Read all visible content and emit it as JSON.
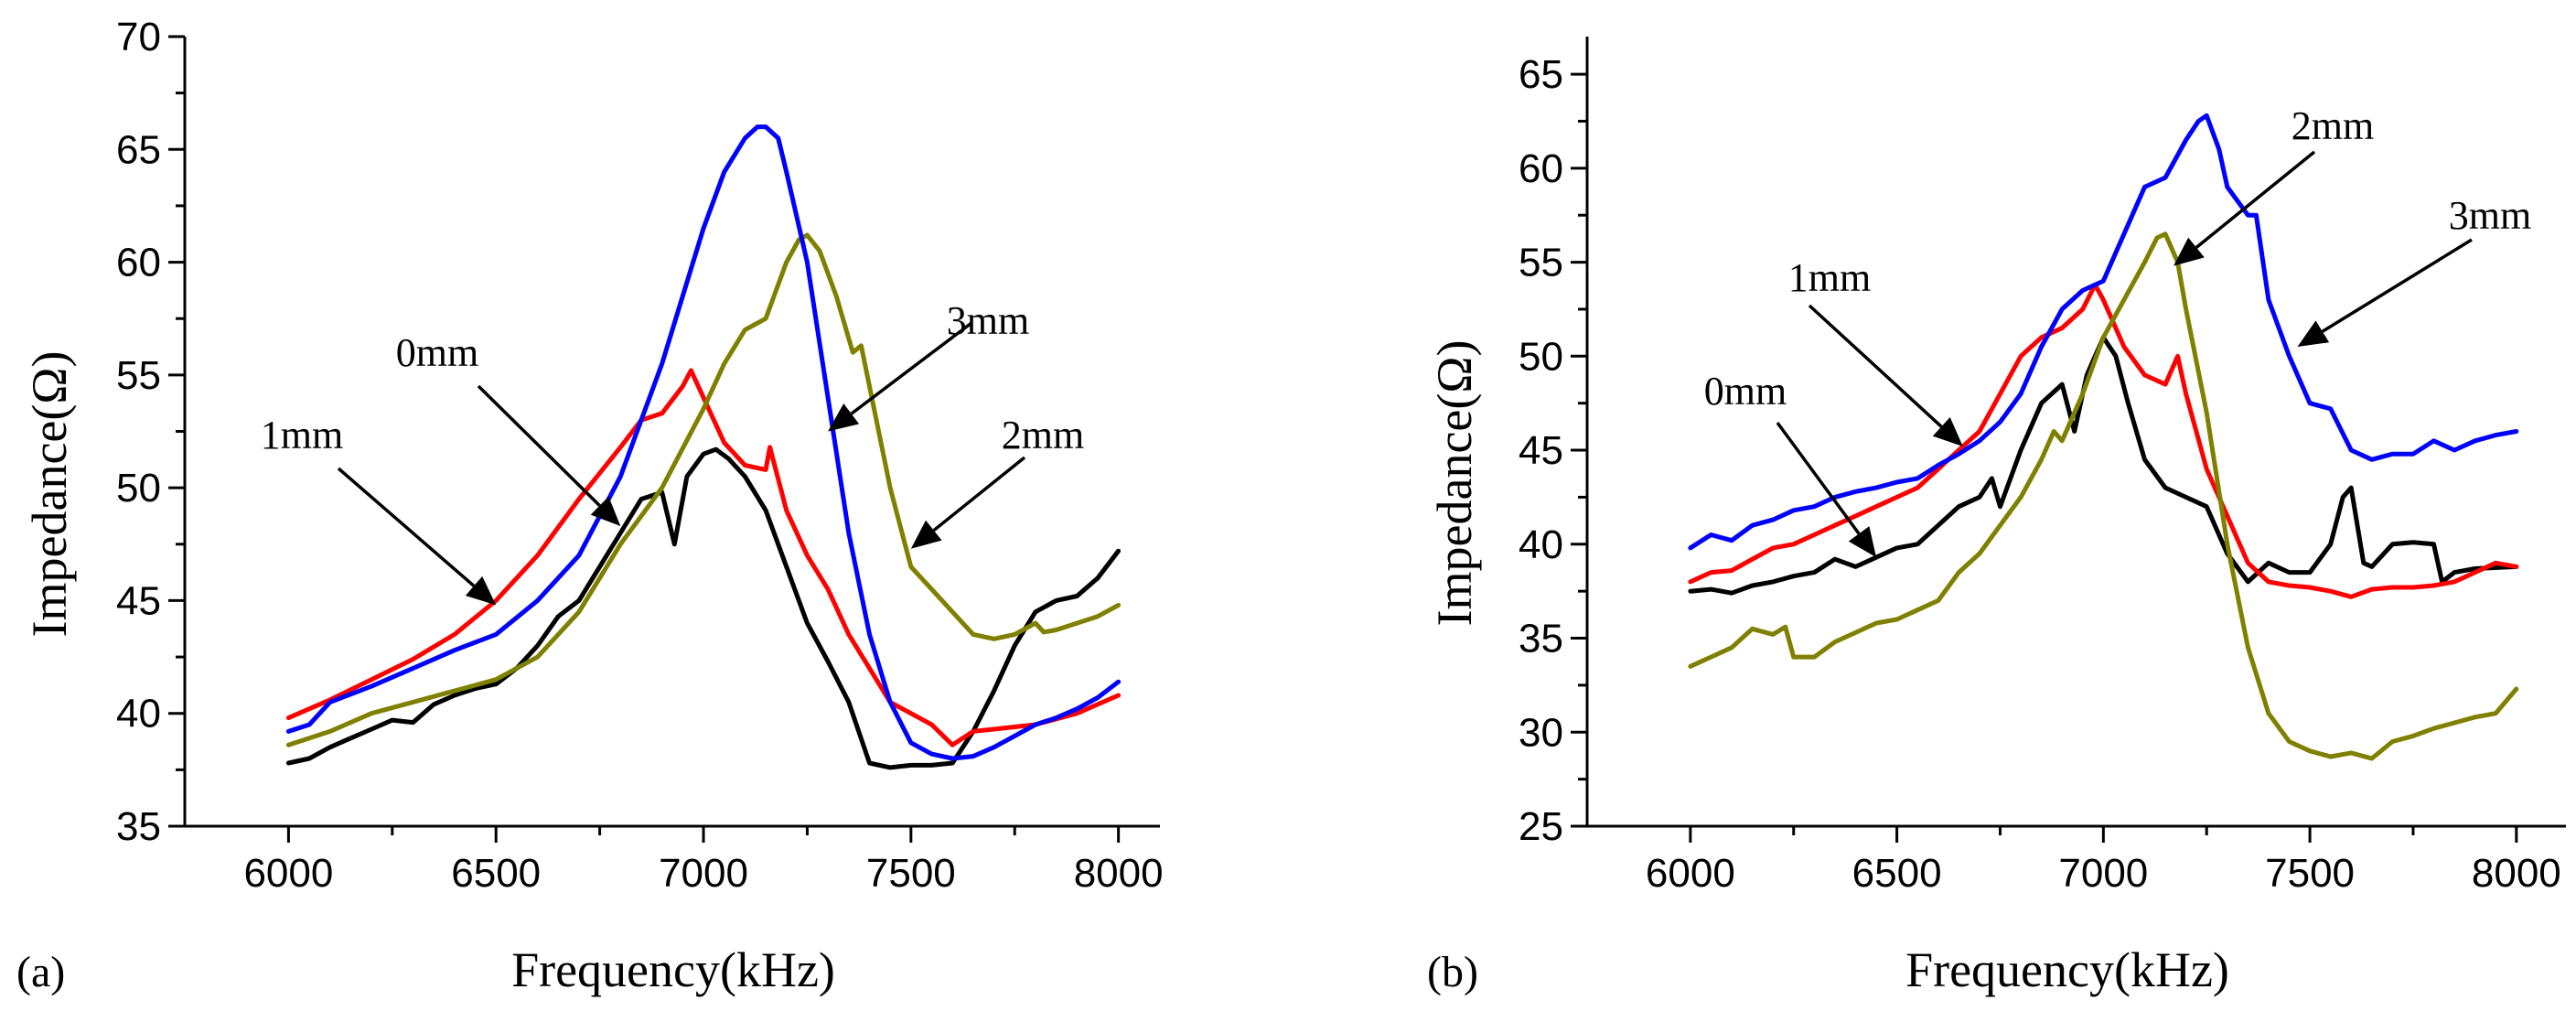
{
  "chart_data": [
    {
      "type": "line",
      "panel_label": "(a)",
      "xlabel": "Frequency(kHz)",
      "ylabel": "Impedance(Ω)",
      "xlim": [
        5750,
        8100
      ],
      "ylim": [
        35,
        70
      ],
      "xticks": [
        6000,
        6500,
        7000,
        7500,
        8000
      ],
      "yticks": [
        35,
        40,
        45,
        50,
        55,
        60,
        65,
        70
      ],
      "series": [
        {
          "name": "0mm",
          "color": "#000000",
          "x": [
            6000,
            6050,
            6100,
            6150,
            6200,
            6250,
            6300,
            6350,
            6400,
            6450,
            6500,
            6550,
            6600,
            6650,
            6700,
            6750,
            6800,
            6850,
            6900,
            6930,
            6960,
            7000,
            7030,
            7060,
            7100,
            7150,
            7200,
            7250,
            7300,
            7350,
            7400,
            7450,
            7500,
            7550,
            7600,
            7650,
            7700,
            7750,
            7800,
            7850,
            7900,
            7950,
            8000
          ],
          "y": [
            37.8,
            38.0,
            38.5,
            38.9,
            39.3,
            39.7,
            39.6,
            40.4,
            40.8,
            41.1,
            41.3,
            42.0,
            43.0,
            44.3,
            45.0,
            46.5,
            48.0,
            49.5,
            49.8,
            47.5,
            50.5,
            51.5,
            51.7,
            51.3,
            50.5,
            49.0,
            46.5,
            44.0,
            42.3,
            40.5,
            37.8,
            37.6,
            37.7,
            37.7,
            37.8,
            39.2,
            41.0,
            43.0,
            44.5,
            45.0,
            45.2,
            46.0,
            47.2
          ]
        },
        {
          "name": "1mm",
          "color": "#ff0000",
          "x": [
            6000,
            6100,
            6200,
            6300,
            6400,
            6500,
            6600,
            6700,
            6800,
            6850,
            6900,
            6950,
            6970,
            7000,
            7050,
            7100,
            7150,
            7160,
            7200,
            7250,
            7300,
            7350,
            7400,
            7450,
            7500,
            7550,
            7600,
            7650,
            7700,
            7800,
            7900,
            8000
          ],
          "y": [
            39.8,
            40.6,
            41.5,
            42.4,
            43.5,
            45.0,
            47.0,
            49.5,
            51.8,
            53.0,
            53.3,
            54.5,
            55.2,
            54.0,
            52.0,
            51.0,
            50.8,
            51.8,
            49.0,
            47.0,
            45.5,
            43.5,
            42.0,
            40.5,
            40.0,
            39.5,
            38.6,
            39.2,
            39.3,
            39.5,
            40.0,
            40.8
          ]
        },
        {
          "name": "2mm",
          "color": "#808000",
          "x": [
            6000,
            6100,
            6200,
            6300,
            6400,
            6500,
            6600,
            6700,
            6800,
            6900,
            7000,
            7050,
            7100,
            7150,
            7200,
            7230,
            7250,
            7280,
            7320,
            7360,
            7380,
            7400,
            7450,
            7500,
            7550,
            7600,
            7650,
            7700,
            7750,
            7800,
            7820,
            7850,
            7900,
            7950,
            8000
          ],
          "y": [
            38.6,
            39.2,
            40.0,
            40.5,
            41.0,
            41.5,
            42.5,
            44.5,
            47.5,
            50.0,
            53.5,
            55.5,
            57.0,
            57.5,
            60.0,
            61.0,
            61.2,
            60.5,
            58.5,
            56.0,
            56.3,
            54.5,
            50.0,
            46.5,
            45.5,
            44.5,
            43.5,
            43.3,
            43.5,
            44.0,
            43.6,
            43.7,
            44.0,
            44.3,
            44.8
          ]
        },
        {
          "name": "3mm",
          "color": "#0000ff",
          "x": [
            6000,
            6050,
            6100,
            6200,
            6300,
            6400,
            6500,
            6600,
            6700,
            6800,
            6900,
            6950,
            7000,
            7050,
            7100,
            7130,
            7150,
            7180,
            7200,
            7250,
            7300,
            7350,
            7400,
            7450,
            7500,
            7550,
            7600,
            7650,
            7700,
            7750,
            7800,
            7850,
            7900,
            7950,
            8000
          ],
          "y": [
            39.2,
            39.5,
            40.5,
            41.2,
            42.0,
            42.8,
            43.5,
            45.0,
            47.0,
            50.5,
            55.5,
            58.5,
            61.5,
            64.0,
            65.5,
            66.0,
            66.0,
            65.5,
            64.0,
            60.0,
            54.0,
            48.0,
            43.5,
            40.5,
            38.7,
            38.2,
            38.0,
            38.1,
            38.5,
            39.0,
            39.5,
            39.8,
            40.2,
            40.7,
            41.4
          ]
        }
      ],
      "annotations": [
        {
          "text": "1mm",
          "target": [
            6500,
            44.8
          ]
        },
        {
          "text": "0mm",
          "target": [
            6800,
            48.3
          ]
        },
        {
          "text": "3mm",
          "target": [
            7300,
            52.5
          ]
        },
        {
          "text": "2mm",
          "target": [
            7500,
            47.3
          ]
        }
      ]
    },
    {
      "type": "line",
      "panel_label": "(b)",
      "xlabel": "Frequency(kHz)",
      "ylabel": "Impedance(Ω)",
      "xlim": [
        5750,
        8120
      ],
      "ylim": [
        25,
        67
      ],
      "xticks": [
        6000,
        6500,
        7000,
        7500,
        8000
      ],
      "yticks": [
        25,
        30,
        35,
        40,
        45,
        50,
        55,
        60,
        65
      ],
      "series": [
        {
          "name": "0mm",
          "color": "#000000",
          "x": [
            6000,
            6050,
            6100,
            6150,
            6200,
            6250,
            6300,
            6350,
            6400,
            6450,
            6500,
            6550,
            6600,
            6650,
            6700,
            6730,
            6750,
            6800,
            6850,
            6900,
            6930,
            6960,
            7000,
            7030,
            7060,
            7100,
            7150,
            7200,
            7250,
            7300,
            7350,
            7400,
            7450,
            7500,
            7550,
            7580,
            7600,
            7630,
            7650,
            7700,
            7750,
            7800,
            7820,
            7850,
            7900,
            8000
          ],
          "y": [
            37.5,
            37.6,
            37.4,
            37.8,
            38.0,
            38.3,
            38.5,
            39.2,
            38.8,
            39.3,
            39.8,
            40.0,
            41.0,
            42.0,
            42.5,
            43.5,
            42.0,
            45.0,
            47.5,
            48.5,
            46.0,
            49.0,
            51.0,
            50.0,
            47.5,
            44.5,
            43.0,
            42.5,
            42.0,
            39.5,
            38.0,
            39.0,
            38.5,
            38.5,
            40.0,
            42.5,
            43.0,
            39.0,
            38.8,
            40.0,
            40.1,
            40.0,
            38.0,
            38.5,
            38.7,
            38.8
          ]
        },
        {
          "name": "1mm",
          "color": "#ff0000",
          "x": [
            6000,
            6050,
            6100,
            6150,
            6200,
            6250,
            6300,
            6350,
            6400,
            6450,
            6500,
            6550,
            6600,
            6650,
            6700,
            6750,
            6800,
            6850,
            6900,
            6950,
            6980,
            7000,
            7050,
            7100,
            7150,
            7180,
            7200,
            7250,
            7300,
            7350,
            7400,
            7450,
            7500,
            7550,
            7600,
            7650,
            7700,
            7750,
            7800,
            7850,
            7900,
            7950,
            8000
          ],
          "y": [
            38.0,
            38.5,
            38.6,
            39.2,
            39.8,
            40.0,
            40.5,
            41.0,
            41.5,
            42.0,
            42.5,
            43.0,
            44.0,
            45.0,
            46.0,
            48.0,
            50.0,
            51.0,
            51.5,
            52.5,
            53.8,
            53.0,
            50.5,
            49.0,
            48.5,
            50.0,
            48.0,
            44.0,
            41.5,
            39.0,
            38.0,
            37.8,
            37.7,
            37.5,
            37.2,
            37.6,
            37.7,
            37.7,
            37.8,
            38.0,
            38.5,
            39.0,
            38.8
          ]
        },
        {
          "name": "2mm",
          "color": "#808000",
          "x": [
            6000,
            6050,
            6100,
            6150,
            6200,
            6230,
            6250,
            6300,
            6350,
            6400,
            6450,
            6500,
            6550,
            6600,
            6650,
            6700,
            6750,
            6800,
            6850,
            6880,
            6900,
            6950,
            7000,
            7050,
            7100,
            7130,
            7150,
            7180,
            7200,
            7250,
            7300,
            7350,
            7400,
            7450,
            7500,
            7550,
            7600,
            7650,
            7700,
            7750,
            7800,
            7850,
            7900,
            7950,
            8000
          ],
          "y": [
            33.5,
            34.0,
            34.5,
            35.5,
            35.2,
            35.6,
            34.0,
            34.0,
            34.8,
            35.3,
            35.8,
            36.0,
            36.5,
            37.0,
            38.5,
            39.5,
            41.0,
            42.5,
            44.5,
            46.0,
            45.5,
            48.0,
            51.0,
            53.0,
            55.0,
            56.3,
            56.5,
            55.0,
            52.5,
            47.0,
            40.0,
            34.5,
            31.0,
            29.5,
            29.0,
            28.7,
            28.9,
            28.6,
            29.5,
            29.8,
            30.2,
            30.5,
            30.8,
            31.0,
            32.3
          ]
        },
        {
          "name": "3mm",
          "color": "#0000ff",
          "x": [
            6000,
            6050,
            6100,
            6150,
            6200,
            6250,
            6300,
            6350,
            6400,
            6450,
            6500,
            6550,
            6600,
            6650,
            6700,
            6750,
            6800,
            6850,
            6900,
            6950,
            7000,
            7050,
            7100,
            7150,
            7200,
            7230,
            7250,
            7280,
            7300,
            7350,
            7370,
            7400,
            7450,
            7500,
            7550,
            7600,
            7650,
            7700,
            7750,
            7800,
            7850,
            7900,
            7950,
            8000
          ],
          "y": [
            39.8,
            40.5,
            40.2,
            41.0,
            41.3,
            41.8,
            42.0,
            42.5,
            42.8,
            43.0,
            43.3,
            43.5,
            44.2,
            44.8,
            45.5,
            46.5,
            48.0,
            50.5,
            52.5,
            53.5,
            54.0,
            56.5,
            59.0,
            59.5,
            61.5,
            62.5,
            62.8,
            61.0,
            59.0,
            57.5,
            57.5,
            53.0,
            50.0,
            47.5,
            47.2,
            45.0,
            44.5,
            44.8,
            44.8,
            45.5,
            45.0,
            45.5,
            45.8,
            46.0
          ]
        }
      ],
      "annotations": [
        {
          "text": "2mm",
          "target": [
            7170,
            54.8
          ]
        },
        {
          "text": "3mm",
          "target": [
            7470,
            50.5
          ]
        },
        {
          "text": "1mm",
          "target": [
            6660,
            45.2
          ]
        },
        {
          "text": "0mm",
          "target": [
            6450,
            39.3
          ]
        }
      ]
    }
  ]
}
